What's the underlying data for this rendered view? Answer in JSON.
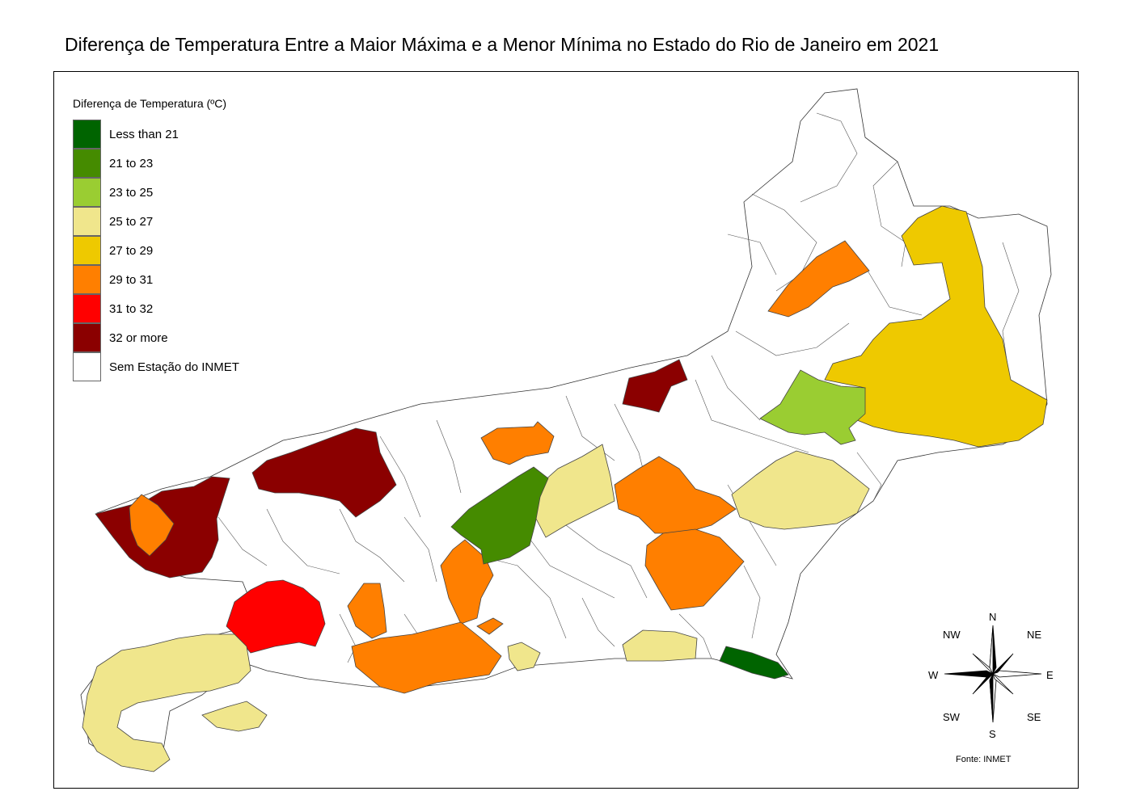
{
  "title": "Diferença de Temperatura Entre a Maior Máxima e a Menor Mínima no Estado do Rio de Janeiro em 2021",
  "legend": {
    "title": "Diferença de Temperatura (ºC)",
    "items": [
      {
        "label": "Less than 21",
        "color": "#006400"
      },
      {
        "label": "21 to 23",
        "color": "#458B00"
      },
      {
        "label": "23 to 25",
        "color": "#9ACD32"
      },
      {
        "label": "25 to 27",
        "color": "#F0E68C"
      },
      {
        "label": "27 to 29",
        "color": "#EEC900"
      },
      {
        "label": "29 to 31",
        "color": "#FF7F00"
      },
      {
        "label": "31 to 32",
        "color": "#FF0000"
      },
      {
        "label": "32 or more",
        "color": "#8B0000"
      },
      {
        "label": "Sem Estação do INMET",
        "color": "#FFFFFF"
      }
    ]
  },
  "compass": {
    "n": "N",
    "ne": "NE",
    "e": "E",
    "se": "SE",
    "s": "S",
    "sw": "SW",
    "w": "W",
    "nw": "NW"
  },
  "source": "Fonte: INMET"
}
